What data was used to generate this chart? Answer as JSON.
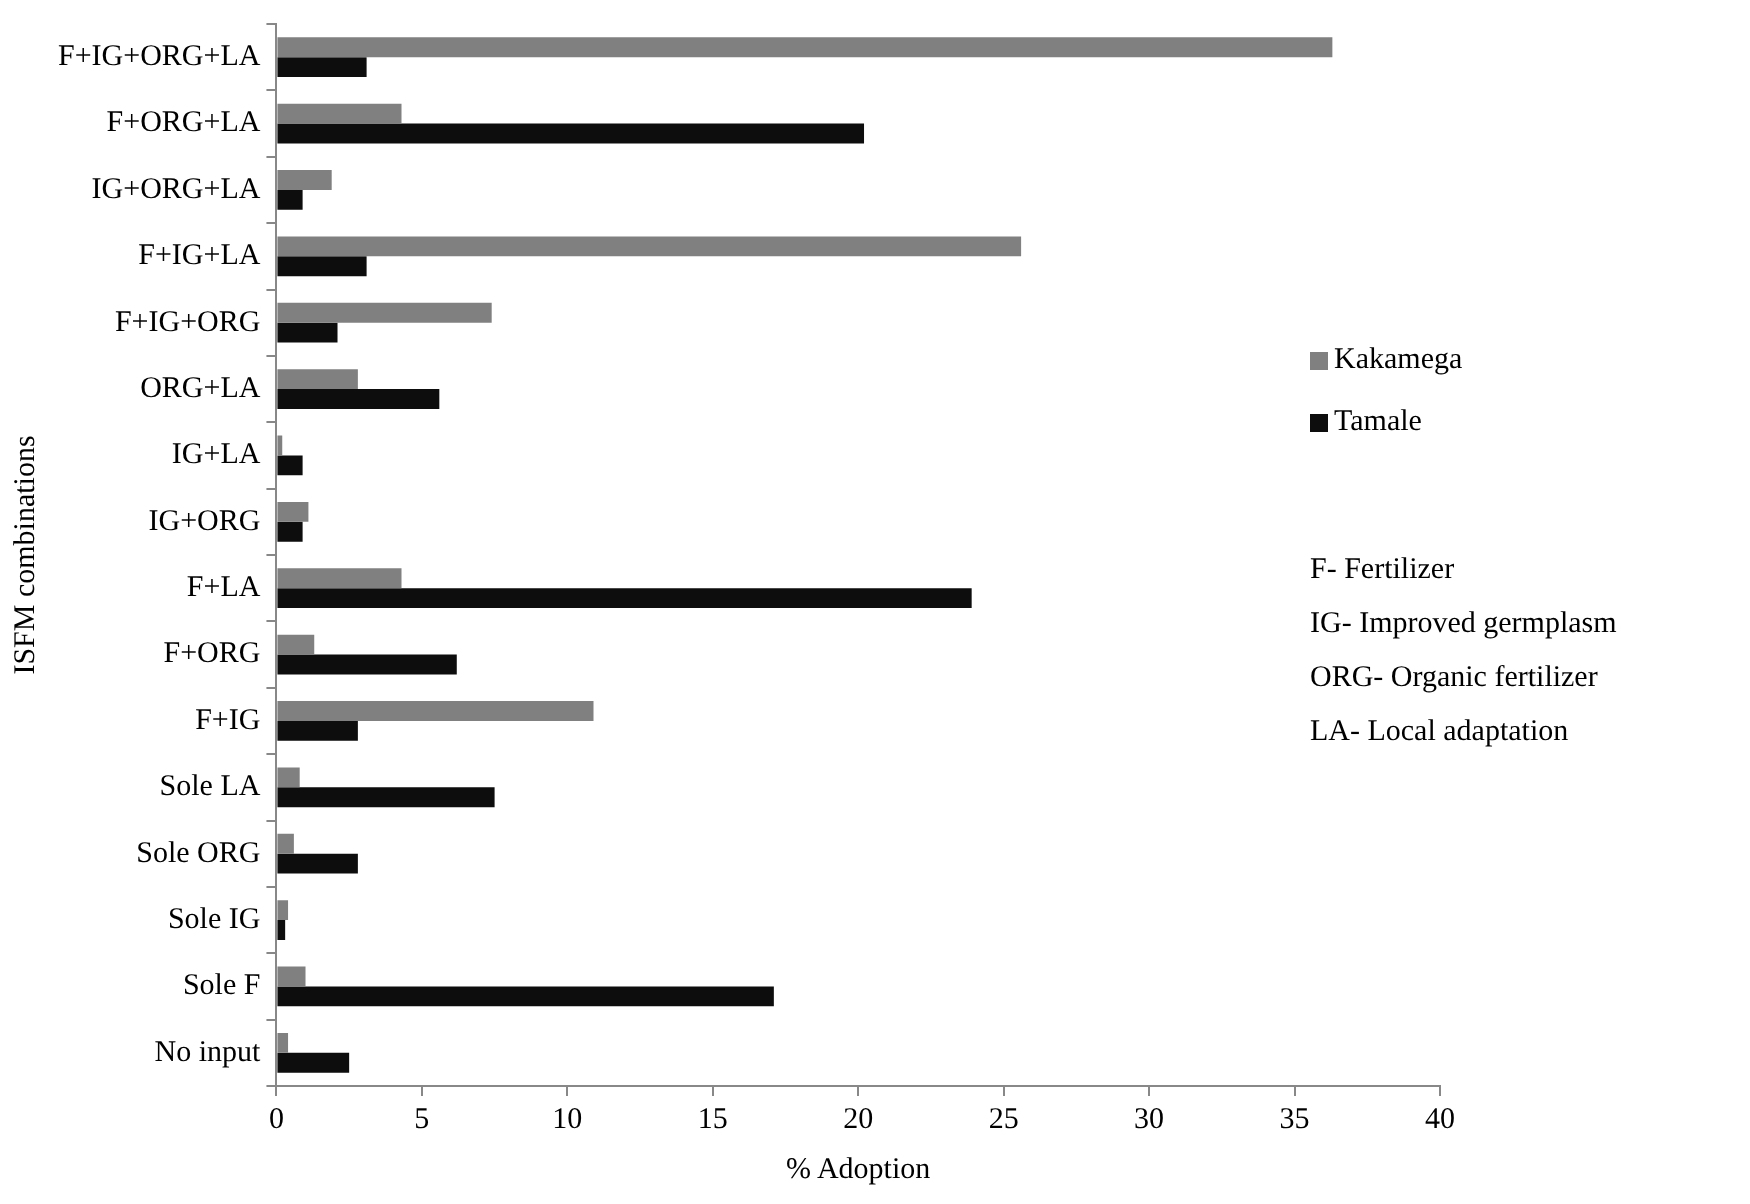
{
  "chart_data": {
    "type": "bar",
    "orientation": "horizontal",
    "xlabel": "% Adoption",
    "ylabel": "ISFM combinations",
    "categories": [
      "F+IG+ORG+LA",
      "F+ORG+LA",
      "IG+ORG+LA",
      "F+IG+LA",
      "F+IG+ORG",
      "ORG+LA",
      "IG+LA",
      "IG+ORG",
      "F+LA",
      "F+ORG",
      "F+IG",
      "Sole LA",
      "Sole ORG",
      "Sole IG",
      "Sole F",
      "No input"
    ],
    "series": [
      {
        "name": "Kakamega",
        "color": "#808080",
        "values": [
          36.3,
          4.3,
          1.9,
          25.6,
          7.4,
          2.8,
          0.2,
          1.1,
          4.3,
          1.3,
          10.9,
          0.8,
          0.6,
          0.4,
          1.0,
          0.4
        ]
      },
      {
        "name": "Tamale",
        "color": "#0d0d0d",
        "values": [
          3.1,
          20.2,
          0.9,
          3.1,
          2.1,
          5.6,
          0.9,
          0.9,
          23.9,
          6.2,
          2.8,
          7.5,
          2.8,
          0.3,
          17.1,
          2.5
        ]
      }
    ],
    "xlim": [
      0,
      40
    ],
    "xticks": [
      0,
      5,
      10,
      15,
      20,
      25,
      30,
      35,
      40
    ],
    "grid": false,
    "legend": "right",
    "annotations": [
      "F- Fertilizer",
      "IG- Improved germplasm",
      "ORG- Organic fertilizer",
      "LA- Local adaptation"
    ]
  }
}
